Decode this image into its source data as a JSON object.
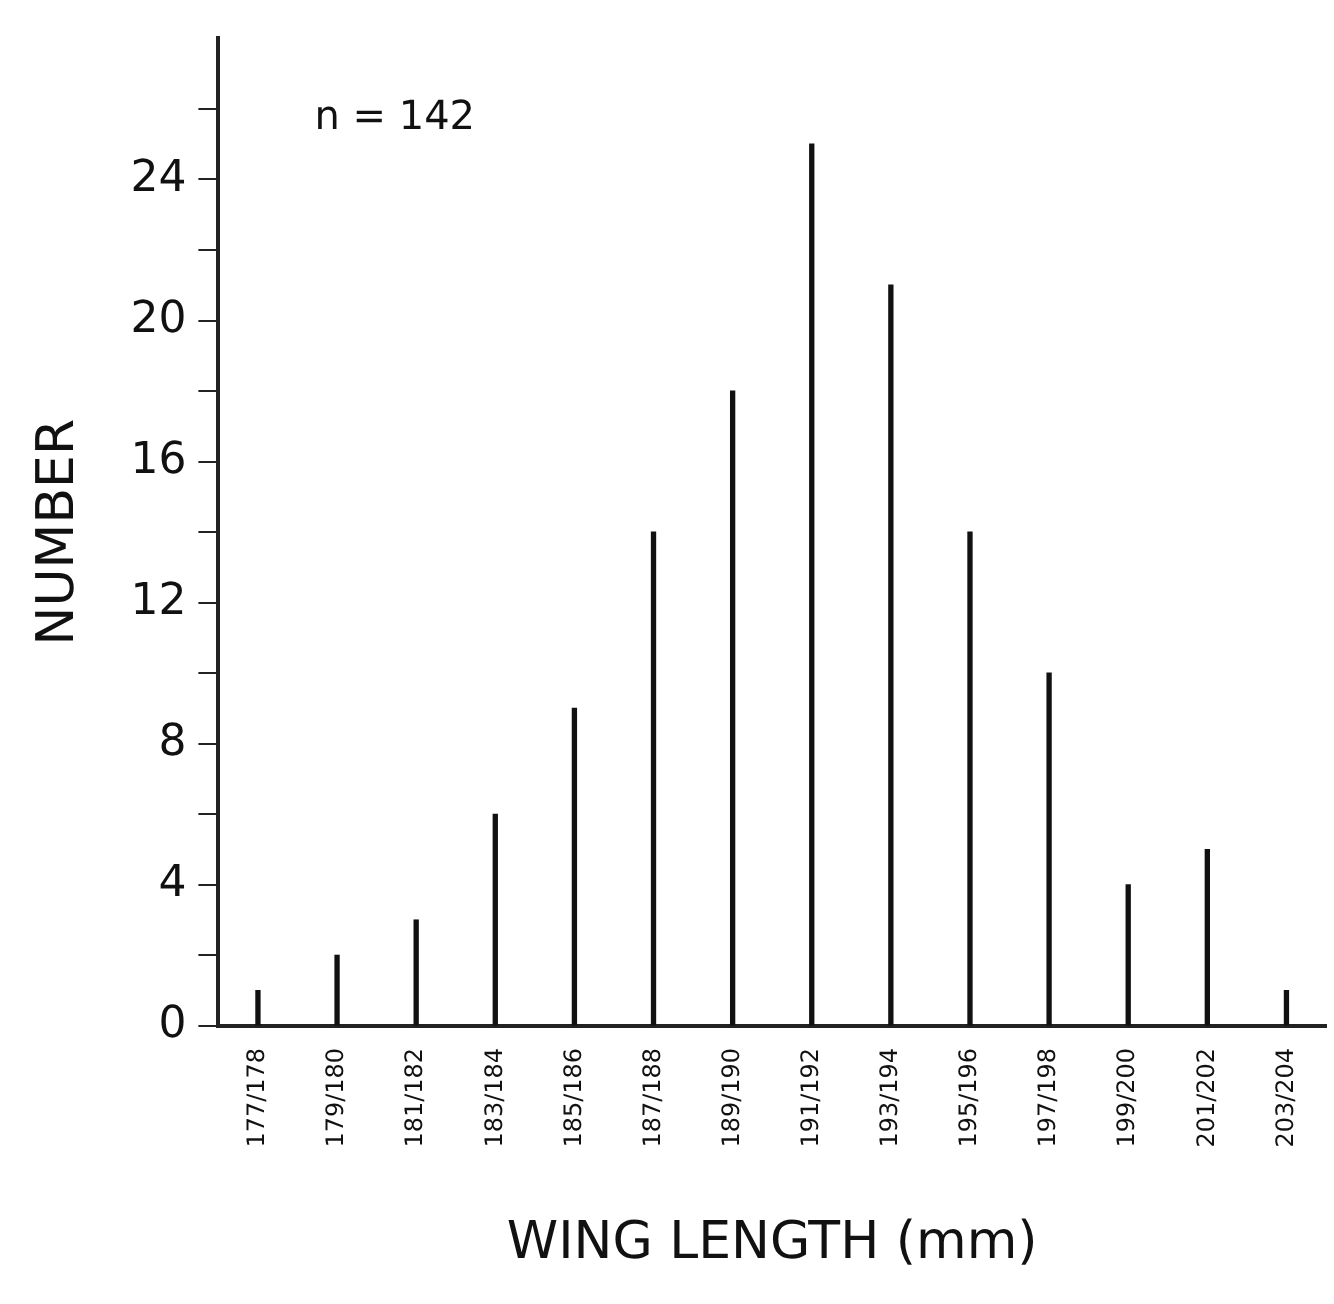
{
  "chart_data": {
    "type": "bar",
    "xlabel": "WING LENGTH (mm)",
    "ylabel": "NUMBER",
    "annotations": [
      "n = 142"
    ],
    "categories": [
      "177/178",
      "179/180",
      "181/182",
      "183/184",
      "185/186",
      "187/188",
      "189/190",
      "191/192",
      "193/194",
      "195/196",
      "197/198",
      "199/200",
      "201/202",
      "203/204"
    ],
    "values": [
      1,
      2,
      3,
      6,
      9,
      14,
      18,
      25,
      21,
      14,
      10,
      4,
      5,
      1
    ],
    "color": "#111111",
    "ylim": [
      0,
      28
    ],
    "yticks": [
      0,
      {
        "value": 2,
        "label": null
      },
      4,
      {
        "value": 6,
        "label": null
      },
      8,
      {
        "value": 10,
        "label": null
      },
      12,
      {
        "value": 14,
        "label": null
      },
      16,
      {
        "value": 18,
        "label": null
      },
      20,
      {
        "value": 22,
        "label": null
      },
      24,
      {
        "value": 26,
        "label": null
      }
    ],
    "grid": false,
    "legend": false
  }
}
